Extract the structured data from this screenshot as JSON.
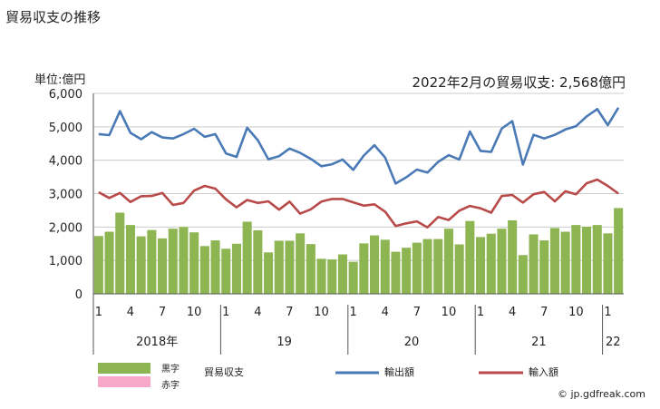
{
  "page_title": "貿易収支の推移",
  "unit_label": "単位:億円",
  "annotation": "2022年2月の貿易収支: 2,568億円",
  "copyright": "© jp.gdfreak.com",
  "legend": {
    "surplus": "黒字",
    "deficit": "赤字",
    "balance": "貿易収支",
    "exports": "輸出額",
    "imports": "輸入額"
  },
  "colors": {
    "surplus": "#8db552",
    "deficit": "#f7a8c8",
    "exports": "#4a7ab5",
    "imports": "#b94a4a",
    "grid": "#cccccc",
    "axis": "#555555"
  },
  "chart_data": {
    "type": "bar+line",
    "ylim": [
      0,
      6000
    ],
    "yticks": [
      {
        "value": 0,
        "label": "0"
      },
      {
        "value": 1000,
        "label": "1,000"
      },
      {
        "value": 2000,
        "label": "2,000"
      },
      {
        "value": 3000,
        "label": "3,000"
      },
      {
        "value": 4000,
        "label": "4,000"
      },
      {
        "value": 5000,
        "label": "5,000"
      },
      {
        "value": 6000,
        "label": "6,000"
      }
    ],
    "month_ticks": [
      {
        "index": 0,
        "label": "1"
      },
      {
        "index": 3,
        "label": "4"
      },
      {
        "index": 6,
        "label": "7"
      },
      {
        "index": 9,
        "label": "10"
      },
      {
        "index": 12,
        "label": "1"
      },
      {
        "index": 15,
        "label": "4"
      },
      {
        "index": 18,
        "label": "7"
      },
      {
        "index": 21,
        "label": "10"
      },
      {
        "index": 24,
        "label": "1"
      },
      {
        "index": 27,
        "label": "4"
      },
      {
        "index": 30,
        "label": "7"
      },
      {
        "index": 33,
        "label": "10"
      },
      {
        "index": 36,
        "label": "1"
      },
      {
        "index": 39,
        "label": "4"
      },
      {
        "index": 42,
        "label": "7"
      },
      {
        "index": 45,
        "label": "10"
      },
      {
        "index": 48,
        "label": "1"
      }
    ],
    "years": [
      {
        "label": "2018年",
        "start": 0,
        "count": 12
      },
      {
        "label": "19",
        "start": 12,
        "count": 12
      },
      {
        "label": "20",
        "start": 24,
        "count": 12
      },
      {
        "label": "21",
        "start": 36,
        "count": 12
      },
      {
        "label": "22",
        "start": 48,
        "count": 2
      }
    ],
    "series": [
      {
        "name": "貿易収支",
        "kind": "bar",
        "values": [
          1730,
          1860,
          2430,
          2060,
          1720,
          1910,
          1660,
          1950,
          2000,
          1840,
          1430,
          1600,
          1350,
          1500,
          2160,
          1900,
          1240,
          1590,
          1590,
          1810,
          1490,
          1050,
          1030,
          1180,
          960,
          1510,
          1750,
          1620,
          1260,
          1380,
          1530,
          1640,
          1640,
          1950,
          1480,
          2180,
          1700,
          1800,
          1950,
          2200,
          1160,
          1780,
          1600,
          1970,
          1860,
          2060,
          2010,
          2060,
          1810,
          2568
        ]
      },
      {
        "name": "輸出額",
        "kind": "line",
        "values": [
          4780,
          4750,
          5470,
          4820,
          4630,
          4840,
          4680,
          4650,
          4780,
          4940,
          4700,
          4780,
          4200,
          4100,
          4970,
          4600,
          4030,
          4120,
          4350,
          4220,
          4040,
          3820,
          3880,
          4020,
          3710,
          4140,
          4450,
          4080,
          3300,
          3490,
          3720,
          3630,
          3950,
          4150,
          4020,
          4860,
          4280,
          4250,
          4950,
          5170,
          3870,
          4760,
          4650,
          4760,
          4920,
          5020,
          5310,
          5530,
          5050,
          5570
        ]
      },
      {
        "name": "輸入額",
        "kind": "line",
        "values": [
          3040,
          2870,
          3020,
          2750,
          2920,
          2930,
          3020,
          2660,
          2720,
          3090,
          3230,
          3150,
          2830,
          2590,
          2810,
          2720,
          2770,
          2520,
          2760,
          2400,
          2530,
          2760,
          2840,
          2840,
          2740,
          2640,
          2680,
          2460,
          2030,
          2110,
          2170,
          1990,
          2300,
          2210,
          2490,
          2630,
          2560,
          2430,
          2930,
          2960,
          2730,
          2980,
          3050,
          2770,
          3070,
          2980,
          3310,
          3420,
          3230,
          3000
        ]
      }
    ]
  }
}
